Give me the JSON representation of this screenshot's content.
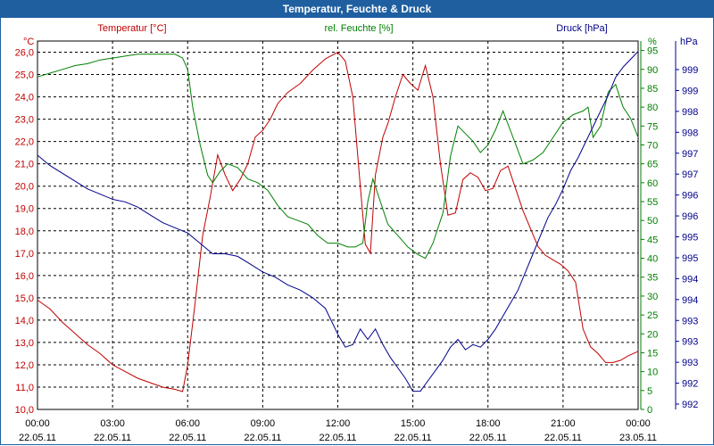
{
  "window": {
    "title": "Temperatur, Feuchte & Druck"
  },
  "colors": {
    "temperature": "#c00000",
    "humidity": "#008000",
    "pressure": "#00008b",
    "titlebar": "#1f5fa0"
  },
  "chart_data": {
    "type": "line",
    "title": "Temperatur, Feuchte & Druck",
    "grid": true,
    "x_ticks": [
      {
        "time": "00:00",
        "date": "22.05.11"
      },
      {
        "time": "03:00",
        "date": "22.05.11"
      },
      {
        "time": "06:00",
        "date": "22.05.11"
      },
      {
        "time": "09:00",
        "date": "22.05.11"
      },
      {
        "time": "12:00",
        "date": "22.05.11"
      },
      {
        "time": "15:00",
        "date": "22.05.11"
      },
      {
        "time": "18:00",
        "date": "22.05.11"
      },
      {
        "time": "21:00",
        "date": "22.05.11"
      },
      {
        "time": "00:00",
        "date": "23.05.11"
      }
    ],
    "xlim": [
      0,
      24
    ],
    "axes": {
      "temperature": {
        "label": "Temperatur [°C]",
        "unit": "°C",
        "ylim": [
          10,
          26.5
        ],
        "ticks": [
          "10,0",
          "11,0",
          "12,0",
          "13,0",
          "14,0",
          "15,0",
          "16,0",
          "17,0",
          "18,0",
          "19,0",
          "20,0",
          "21,0",
          "22,0",
          "23,0",
          "24,0",
          "25,0",
          "26,0"
        ]
      },
      "humidity": {
        "label": "rel. Feuchte [%]",
        "unit": "%",
        "ylim": [
          0,
          97.5
        ],
        "ticks": [
          "0",
          "5",
          "10",
          "15",
          "20",
          "25",
          "30",
          "35",
          "40",
          "45",
          "50",
          "55",
          "60",
          "65",
          "70",
          "75",
          "80",
          "85",
          "90",
          "95"
        ]
      },
      "pressure": {
        "label": "Druck [hPa]",
        "unit": "hPa",
        "ticks": [
          "992",
          "992",
          "993",
          "993",
          "993",
          "994",
          "994",
          "995",
          "995",
          "996",
          "996",
          "997",
          "997",
          "998",
          "998",
          "999",
          "999"
        ]
      }
    },
    "series": [
      {
        "name": "Temperatur [°C]",
        "axis": "temperature",
        "x": [
          0,
          0.5,
          1,
          1.5,
          2,
          2.5,
          3,
          3.5,
          4,
          4.5,
          5,
          5.5,
          5.8,
          6,
          6.3,
          6.6,
          6.9,
          7.2,
          7.5,
          7.8,
          8.1,
          8.4,
          8.7,
          9,
          9.3,
          9.6,
          10,
          10.5,
          11,
          11.5,
          12,
          12.3,
          12.6,
          12.9,
          13.1,
          13.3,
          13.5,
          13.8,
          14,
          14.3,
          14.6,
          14.9,
          15.2,
          15.5,
          15.8,
          16.1,
          16.4,
          16.7,
          17,
          17.3,
          17.6,
          17.9,
          18.2,
          18.5,
          18.8,
          19.1,
          19.4,
          19.7,
          20,
          20.3,
          20.6,
          20.9,
          21.2,
          21.5,
          21.8,
          22.1,
          22.4,
          22.7,
          23,
          23.3,
          23.6,
          24
        ],
        "values": [
          14.9,
          14.5,
          13.9,
          13.4,
          12.9,
          12.5,
          12.0,
          11.7,
          11.4,
          11.2,
          11.0,
          10.9,
          10.8,
          12.0,
          14.8,
          17.8,
          19.5,
          21.4,
          20.5,
          19.8,
          20.3,
          21.0,
          22.2,
          22.5,
          23.0,
          23.7,
          24.2,
          24.6,
          25.2,
          25.7,
          26.0,
          25.6,
          24.0,
          20.0,
          17.4,
          17.0,
          20.5,
          22.2,
          22.8,
          24.0,
          25.0,
          24.6,
          24.3,
          25.4,
          24.0,
          21.0,
          18.7,
          18.8,
          20.3,
          20.6,
          20.4,
          19.8,
          19.9,
          20.7,
          20.9,
          19.9,
          18.9,
          18.1,
          17.3,
          16.9,
          16.7,
          16.5,
          16.2,
          15.7,
          13.6,
          12.8,
          12.5,
          12.1,
          12.1,
          12.2,
          12.4,
          12.6
        ]
      },
      {
        "name": "rel. Feuchte [%]",
        "axis": "humidity",
        "x": [
          0,
          0.5,
          1,
          1.5,
          2,
          2.5,
          3,
          3.5,
          4,
          4.5,
          5,
          5.5,
          5.8,
          6,
          6.2,
          6.5,
          6.8,
          7,
          7.3,
          7.6,
          8,
          8.4,
          8.8,
          9.2,
          9.6,
          10,
          10.4,
          10.8,
          11.2,
          11.6,
          12,
          12.4,
          12.7,
          13,
          13.2,
          13.4,
          13.6,
          14,
          14.4,
          14.8,
          15.2,
          15.5,
          15.8,
          16.2,
          16.5,
          16.8,
          17.1,
          17.4,
          17.7,
          18,
          18.3,
          18.6,
          19,
          19.4,
          19.8,
          20.2,
          20.6,
          21,
          21.4,
          21.8,
          22,
          22.2,
          22.5,
          22.8,
          23.1,
          23.4,
          23.7,
          24
        ],
        "values": [
          88,
          89,
          90,
          91,
          91.5,
          92.5,
          93,
          93.5,
          94,
          94,
          94,
          94,
          93,
          90,
          80,
          70,
          62,
          60,
          63,
          65,
          64,
          61,
          60,
          58,
          54,
          51,
          50,
          49,
          46,
          44,
          44,
          43,
          43,
          44,
          55,
          61,
          57,
          49,
          46,
          43,
          41,
          40,
          44,
          52,
          67,
          75,
          73,
          71,
          68,
          70,
          74,
          79,
          72,
          65,
          66,
          68,
          72,
          76,
          78,
          79,
          80,
          72,
          75,
          84,
          86,
          80,
          77,
          72
        ]
      },
      {
        "name": "Druck [hPa]",
        "axis": "pressure",
        "x": [
          0,
          0.5,
          1,
          1.5,
          2,
          2.5,
          3,
          3.5,
          4,
          4.5,
          5,
          5.5,
          6,
          6.5,
          7,
          7.5,
          8,
          8.5,
          9,
          9.5,
          10,
          10.5,
          11,
          11.5,
          12,
          12.3,
          12.6,
          12.9,
          13.2,
          13.5,
          13.8,
          14.1,
          14.4,
          14.7,
          15,
          15.3,
          15.6,
          15.9,
          16.2,
          16.5,
          16.8,
          17.1,
          17.4,
          17.7,
          18,
          18.3,
          18.6,
          18.9,
          19.2,
          19.5,
          19.8,
          20.1,
          20.4,
          20.7,
          21,
          21.3,
          21.6,
          21.9,
          22.2,
          22.5,
          22.8,
          23.1,
          23.4,
          23.7,
          24
        ],
        "values": [
          996.85,
          996.65,
          996.5,
          996.35,
          996.2,
          996.1,
          996.0,
          995.95,
          995.85,
          995.7,
          995.55,
          995.45,
          995.35,
          995.15,
          994.95,
          994.95,
          994.9,
          994.75,
          994.6,
          994.5,
          994.35,
          994.25,
          994.1,
          993.9,
          993.4,
          993.15,
          993.2,
          993.5,
          993.3,
          993.5,
          993.2,
          992.95,
          992.75,
          992.55,
          992.3,
          992.3,
          992.5,
          992.7,
          992.9,
          993.15,
          993.3,
          993.1,
          993.2,
          993.15,
          993.3,
          993.5,
          993.75,
          994.0,
          994.25,
          994.6,
          994.95,
          995.3,
          995.65,
          995.9,
          996.2,
          996.55,
          996.8,
          997.1,
          997.4,
          997.7,
          998.0,
          998.35,
          998.55,
          998.7,
          998.85
        ]
      }
    ]
  }
}
